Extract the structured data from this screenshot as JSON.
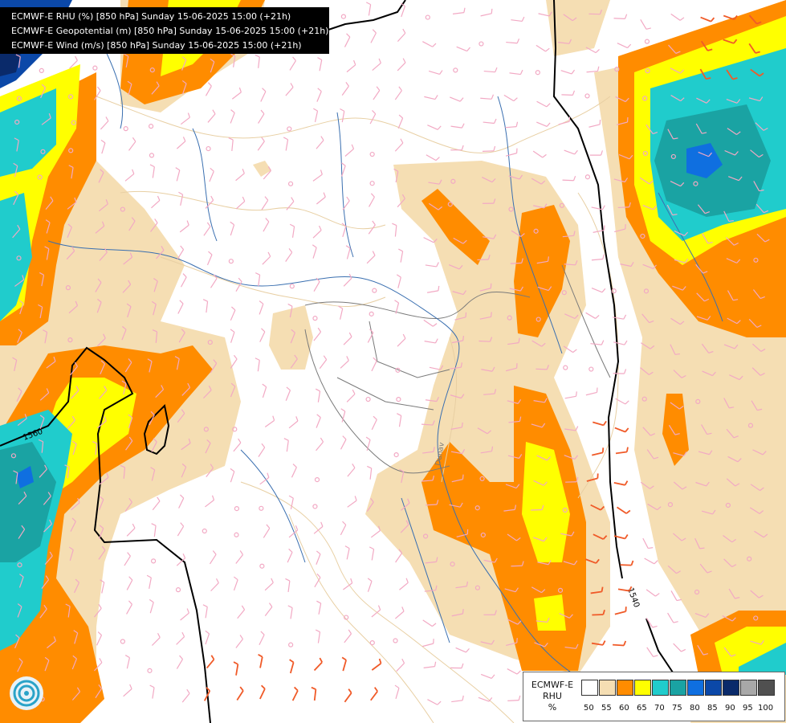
{
  "header": {
    "lines": [
      "ECMWF-E RHU (%) [850 hPa] Sunday 15-06-2025 15:00 (+21h)",
      "ECMWF-E Geopotential (m) [850 hPa] Sunday 15-06-2025 15:00 (+21h)",
      "ECMWF-E Wind (m/s) [850 hPa] Sunday 15-06-2025 15:00 (+21h)"
    ]
  },
  "map": {
    "contour_labels": [
      "1560",
      "1540"
    ],
    "river_label": "Dunav",
    "colors": {
      "country_border": "#7a7a7a",
      "region_border": "#e8cfa3",
      "river": "#3a6fb0",
      "wind_barb_light": "#f2a9c4",
      "wind_barb_strong": "#f05a28",
      "contour": "#000000"
    }
  },
  "legend": {
    "title_lines": [
      "ECMWF-E",
      "RHU",
      "%"
    ],
    "ticks": [
      "50",
      "55",
      "60",
      "65",
      "70",
      "75",
      "80",
      "85",
      "90",
      "95",
      "100"
    ],
    "colors": [
      "#ffffff",
      "#f5deb3",
      "#ff8c00",
      "#ffff00",
      "#20cccc",
      "#1aa3a3",
      "#0f6fe0",
      "#0b48a8",
      "#0a2a6a",
      "#a8a8a8",
      "#505050"
    ]
  },
  "logo": {
    "icon": "ecmwf-swirl-icon"
  }
}
